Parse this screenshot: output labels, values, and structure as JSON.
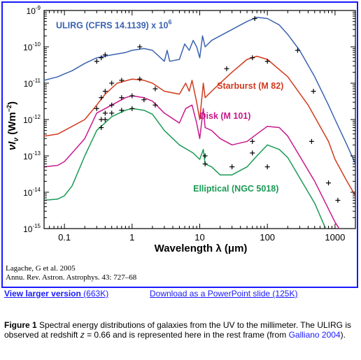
{
  "chart_data": {
    "type": "line",
    "xlabel": "Wavelength λ (μm)",
    "ylabel": "νI_ν (Wm⁻²)",
    "xscale": "log",
    "yscale": "log",
    "xlim": [
      0.05,
      2000
    ],
    "ylim": [
      1e-15,
      1e-09
    ],
    "x_ticks": [
      0.1,
      1,
      10,
      100,
      1000
    ],
    "x_tick_labels": [
      "0.1",
      "1",
      "10",
      "100",
      "1000"
    ],
    "y_ticks": [
      1e-15,
      1e-14,
      1e-13,
      1e-12,
      1e-11,
      1e-10,
      1e-09
    ],
    "y_tick_labels": [
      {
        "base": "10",
        "exp": "-15"
      },
      {
        "base": "10",
        "exp": "-14"
      },
      {
        "base": "10",
        "exp": "-13"
      },
      {
        "base": "10",
        "exp": "-12"
      },
      {
        "base": "10",
        "exp": "-11"
      },
      {
        "base": "10",
        "exp": "-10"
      },
      {
        "base": "10",
        "exp": "-9"
      }
    ],
    "series": [
      {
        "name": "ULIRG (CFRS 14.1139) x 10⁶",
        "color": "#3a63b0",
        "curve": [
          [
            0.05,
            1.2e-11
          ],
          [
            0.08,
            1.5e-11
          ],
          [
            0.1,
            1.8e-11
          ],
          [
            0.13,
            2.2e-11
          ],
          [
            0.2,
            3.5e-11
          ],
          [
            0.3,
            5e-11
          ],
          [
            0.5,
            6e-11
          ],
          [
            0.8,
            7e-11
          ],
          [
            1,
            8e-11
          ],
          [
            1.5,
            9e-11
          ],
          [
            2,
            8e-11
          ],
          [
            3,
            4e-11
          ],
          [
            3.3,
            8e-11
          ],
          [
            3.6,
            4e-11
          ],
          [
            5,
            4.5e-11
          ],
          [
            6,
            1.2e-10
          ],
          [
            7,
            8e-11
          ],
          [
            8,
            1.5e-10
          ],
          [
            9,
            1e-10
          ],
          [
            10,
            5e-11
          ],
          [
            11,
            2e-10
          ],
          [
            12,
            1e-10
          ],
          [
            15,
            1.5e-10
          ],
          [
            20,
            2e-10
          ],
          [
            30,
            3e-10
          ],
          [
            50,
            5e-10
          ],
          [
            70,
            6.5e-10
          ],
          [
            100,
            6e-10
          ],
          [
            150,
            4e-10
          ],
          [
            200,
            2.2e-10
          ],
          [
            300,
            8e-11
          ],
          [
            500,
            1.5e-11
          ],
          [
            800,
            2.5e-12
          ],
          [
            1000,
            1e-12
          ],
          [
            1500,
            2e-13
          ],
          [
            2000,
            6e-14
          ]
        ],
        "points": [
          [
            0.3,
            4e-11
          ],
          [
            0.35,
            5e-11
          ],
          [
            0.4,
            6e-11
          ],
          [
            1.3,
            1e-10
          ],
          [
            65,
            6e-10
          ],
          [
            280,
            8e-11
          ],
          [
            480,
            6e-12
          ]
        ]
      },
      {
        "name": "Starburst (M 82)",
        "color": "#d23a1e",
        "curve": [
          [
            0.05,
            3.5e-13
          ],
          [
            0.08,
            4e-13
          ],
          [
            0.1,
            5e-13
          ],
          [
            0.2,
            1e-12
          ],
          [
            0.3,
            2.5e-12
          ],
          [
            0.4,
            5e-12
          ],
          [
            0.6,
            1e-11
          ],
          [
            1,
            1.3e-11
          ],
          [
            1.5,
            1.2e-11
          ],
          [
            2,
            1e-11
          ],
          [
            3,
            6e-12
          ],
          [
            5,
            5e-12
          ],
          [
            6.2,
            1e-11
          ],
          [
            7,
            6e-12
          ],
          [
            7.7,
            1.2e-11
          ],
          [
            9,
            3e-12
          ],
          [
            10,
            1e-12
          ],
          [
            11.3,
            1e-11
          ],
          [
            12,
            4e-12
          ],
          [
            15,
            6e-12
          ],
          [
            20,
            1e-11
          ],
          [
            30,
            2e-11
          ],
          [
            50,
            4.5e-11
          ],
          [
            70,
            5.5e-11
          ],
          [
            100,
            4.5e-11
          ],
          [
            200,
            1.5e-11
          ],
          [
            400,
            2.5e-12
          ],
          [
            800,
            2.5e-13
          ],
          [
            1000,
            8e-14
          ],
          [
            1500,
            2e-14
          ],
          [
            2000,
            8e-15
          ]
        ],
        "points": [
          [
            0.3,
            2e-12
          ],
          [
            0.35,
            4e-12
          ],
          [
            0.4,
            6e-12
          ],
          [
            0.5,
            1e-11
          ],
          [
            0.7,
            1.2e-11
          ],
          [
            1.3,
            1.3e-11
          ],
          [
            2.2,
            7e-12
          ],
          [
            25,
            2.5e-11
          ],
          [
            60,
            5e-11
          ],
          [
            100,
            4e-11
          ],
          [
            450,
            2.5e-13
          ],
          [
            800,
            1.8e-14
          ],
          [
            1100,
            6e-15
          ]
        ]
      },
      {
        "name": "Disk (M 101)",
        "color": "#c8188c",
        "curve": [
          [
            0.05,
            5e-14
          ],
          [
            0.08,
            5.5e-14
          ],
          [
            0.1,
            7e-14
          ],
          [
            0.13,
            1.2e-13
          ],
          [
            0.2,
            3e-13
          ],
          [
            0.3,
            1.5e-12
          ],
          [
            0.5,
            2.5e-12
          ],
          [
            0.8,
            4e-12
          ],
          [
            1,
            4.5e-12
          ],
          [
            1.5,
            4e-12
          ],
          [
            2,
            3.2e-12
          ],
          [
            3,
            1.5e-12
          ],
          [
            5,
            8e-13
          ],
          [
            6.2,
            2e-12
          ],
          [
            7.7,
            2.5e-12
          ],
          [
            9,
            8e-13
          ],
          [
            10,
            3e-13
          ],
          [
            11.3,
            2e-12
          ],
          [
            12,
            6e-13
          ],
          [
            15,
            5e-13
          ],
          [
            20,
            3e-13
          ],
          [
            30,
            2e-13
          ],
          [
            50,
            2.5e-13
          ],
          [
            70,
            4e-13
          ],
          [
            100,
            6.5e-13
          ],
          [
            150,
            6e-13
          ],
          [
            200,
            3.5e-13
          ],
          [
            500,
            2e-14
          ],
          [
            1000,
            1.5e-15
          ],
          [
            2000,
            2e-16
          ]
        ],
        "points": [
          [
            0.35,
            1e-12
          ],
          [
            0.4,
            1.5e-12
          ],
          [
            0.5,
            2.5e-12
          ],
          [
            0.7,
            4e-12
          ],
          [
            1,
            4.5e-12
          ],
          [
            1.5,
            3.5e-12
          ],
          [
            2.2,
            2.5e-12
          ],
          [
            12,
            1e-13
          ],
          [
            30,
            5e-14
          ],
          [
            60,
            2.5e-13
          ]
        ]
      },
      {
        "name": "Elliptical (NGC 5018)",
        "color": "#1a9a55",
        "curve": [
          [
            0.05,
            6e-15
          ],
          [
            0.08,
            6.5e-15
          ],
          [
            0.1,
            8e-15
          ],
          [
            0.13,
            1.5e-14
          ],
          [
            0.2,
            1e-13
          ],
          [
            0.3,
            5e-13
          ],
          [
            0.5,
            1.2e-12
          ],
          [
            0.8,
            1.8e-12
          ],
          [
            1,
            2e-12
          ],
          [
            1.5,
            1.8e-12
          ],
          [
            2,
            1.4e-12
          ],
          [
            3,
            5e-13
          ],
          [
            5,
            2e-13
          ],
          [
            8,
            1.2e-13
          ],
          [
            10,
            8e-14
          ],
          [
            11.3,
            1.5e-13
          ],
          [
            12,
            6e-14
          ],
          [
            15,
            5e-14
          ],
          [
            20,
            3e-14
          ],
          [
            30,
            3e-14
          ],
          [
            50,
            5e-14
          ],
          [
            70,
            1e-13
          ],
          [
            100,
            2e-13
          ],
          [
            150,
            1.5e-13
          ],
          [
            200,
            9e-14
          ],
          [
            500,
            5e-15
          ],
          [
            1000,
            2.5e-16
          ],
          [
            2000,
            1e-17
          ]
        ],
        "points": [
          [
            0.35,
            6e-13
          ],
          [
            0.4,
            1e-12
          ],
          [
            0.5,
            1.5e-12
          ],
          [
            0.7,
            1.8e-12
          ],
          [
            1,
            2e-12
          ],
          [
            12,
            6e-14
          ],
          [
            60,
            1.2e-13
          ],
          [
            100,
            5e-14
          ]
        ]
      }
    ],
    "labels": [
      {
        "series": 0,
        "text": "ULIRG (CFRS 14.1139) x 10",
        "sup": "6"
      },
      {
        "series": 1,
        "text": "Starburst (M 82)",
        "sup": ""
      },
      {
        "series": 2,
        "text": "Disk (M 101)",
        "sup": ""
      },
      {
        "series": 3,
        "text": "Elliptical (NGC 5018)",
        "sup": ""
      }
    ],
    "grid": false,
    "legend": "inline labels"
  },
  "citation": {
    "line1": "Lagache, G et al. 2005",
    "line2": "Annu. Rev. Astron. Astrophys. 43: 727–68"
  },
  "links": {
    "larger_label": "View larger version",
    "larger_size": " (663K)",
    "ppt_label": "Download as a PowerPoint slide (125K)"
  },
  "caption": {
    "fig_label": "Figure 1",
    "text_a": "  Spectral energy distributions of galaxies from the UV to the millimeter. The ULIRG is observed at redshift ",
    "z_var": "z",
    "text_b": " = 0.66 and is represented here in the rest frame (from ",
    "ref": "Galliano 2004",
    "text_c": ")."
  }
}
